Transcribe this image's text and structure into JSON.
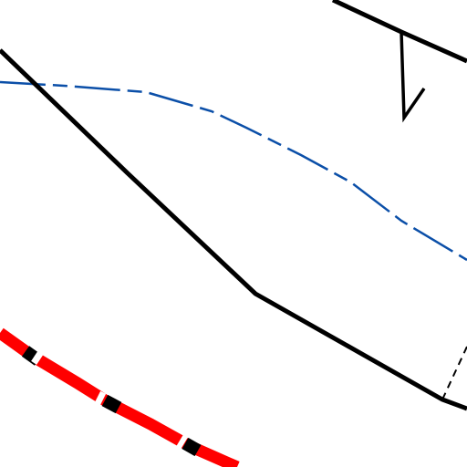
{
  "map": {
    "background_color": "#ffffff",
    "features": [
      {
        "id": "black-road-main",
        "kind": "road",
        "style": "solid",
        "color": "#000000"
      },
      {
        "id": "black-road-top-right",
        "kind": "road",
        "style": "solid",
        "color": "#000000"
      },
      {
        "id": "black-spur-v",
        "kind": "marker",
        "style": "solid",
        "color": "#000000"
      },
      {
        "id": "blue-boundary",
        "kind": "boundary",
        "style": "dash-dot",
        "color": "#0b4fa8"
      },
      {
        "id": "black-dashed-connector",
        "kind": "path",
        "style": "dashed",
        "color": "#000000"
      },
      {
        "id": "red-rail-line",
        "kind": "railway",
        "style": "segmented",
        "color": "#ff0000",
        "segment_color": "#000000"
      }
    ]
  }
}
